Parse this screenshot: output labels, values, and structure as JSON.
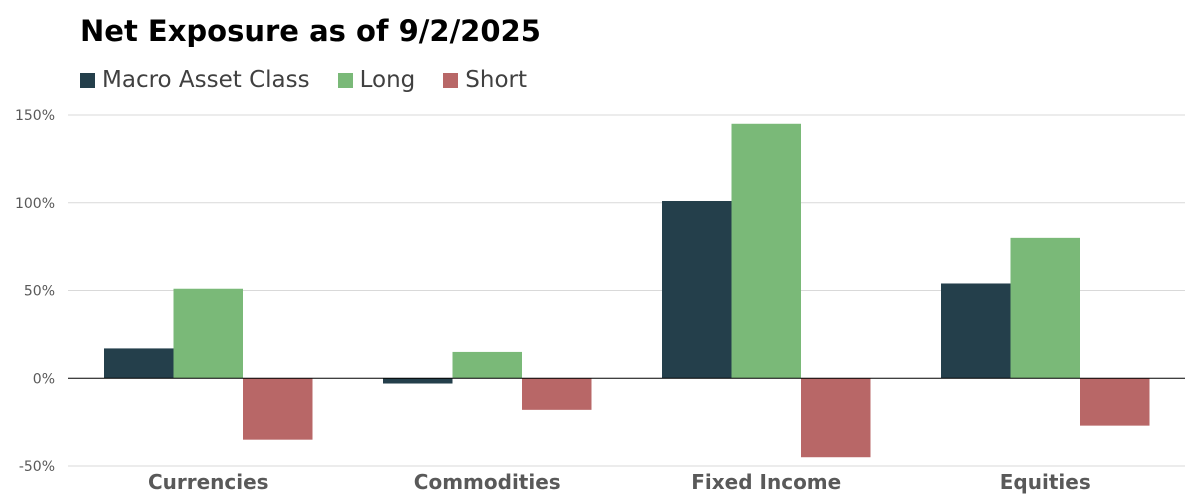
{
  "chart_data": {
    "type": "bar",
    "title": "Net Exposure as of 9/2/2025",
    "categories": [
      "Currencies",
      "Commodities",
      "Fixed Income",
      "Equities"
    ],
    "series": [
      {
        "name": "Macro Asset Class",
        "color": "#243f4b",
        "values": [
          17,
          -3,
          101,
          54
        ]
      },
      {
        "name": "Long",
        "color": "#7ab978",
        "values": [
          51,
          15,
          145,
          80
        ]
      },
      {
        "name": "Short",
        "color": "#b86767",
        "values": [
          -35,
          -18,
          -45,
          -27
        ]
      }
    ],
    "ylim": [
      -50,
      150
    ],
    "yticks": [
      -50,
      0,
      50,
      100,
      150
    ],
    "ytick_labels": [
      "-50%",
      "0%",
      "50%",
      "100%",
      "150%"
    ],
    "xlabel": "",
    "ylabel": "",
    "grid": true,
    "legend_position": "top-left"
  }
}
